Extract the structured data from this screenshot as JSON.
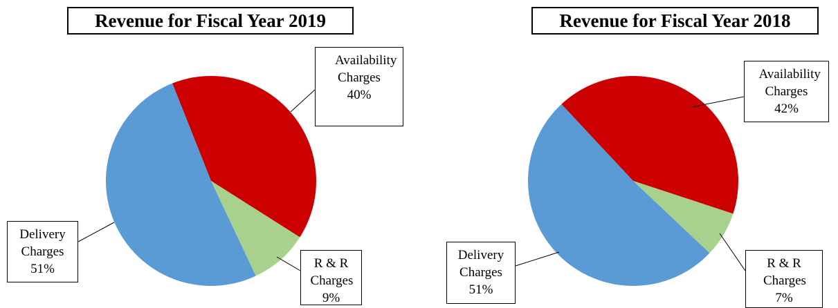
{
  "chart_data": [
    {
      "type": "pie",
      "title": "Revenue for Fiscal Year 2019",
      "categories": [
        "Availability Charges",
        "R & R Charges",
        "Delivery Charges"
      ],
      "values": [
        40,
        9,
        51
      ],
      "value_labels": [
        "40%",
        "9%",
        "51%"
      ],
      "colors": [
        "#cc0000",
        "#a9d18e",
        "#5b9bd5"
      ]
    },
    {
      "type": "pie",
      "title": "Revenue for Fiscal Year 2018",
      "categories": [
        "Availability Charges",
        "R & R Charges",
        "Delivery Charges"
      ],
      "values": [
        42,
        7,
        51
      ],
      "value_labels": [
        "42%",
        "7%",
        "51%"
      ],
      "colors": [
        "#cc0000",
        "#a9d18e",
        "#5b9bd5"
      ]
    }
  ]
}
